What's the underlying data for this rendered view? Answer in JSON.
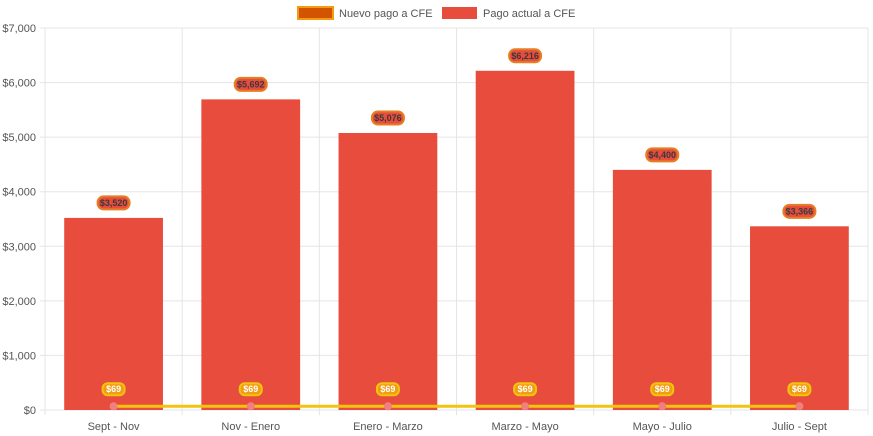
{
  "chart_data": {
    "type": "bar",
    "categories": [
      "Sept - Nov",
      "Nov - Enero",
      "Enero - Marzo",
      "Marzo - Mayo",
      "Mayo - Julio",
      "Julio - Sept"
    ],
    "series": [
      {
        "name": "Nuevo pago a CFE",
        "type": "line",
        "values": [
          69,
          69,
          69,
          69,
          69,
          69
        ],
        "labels": [
          "$69",
          "$69",
          "$69",
          "$69",
          "$69",
          "$69"
        ],
        "color": "#f1c40f",
        "legend_fill": "#d35400",
        "legend_border": "#f39c12"
      },
      {
        "name": "Pago actual a CFE",
        "type": "bar",
        "values": [
          3520,
          5692,
          5076,
          6216,
          4400,
          3366
        ],
        "labels": [
          "$3,520",
          "$5,692",
          "$5,076",
          "$6,216",
          "$4,400",
          "$3,366"
        ],
        "color": "#e74c3c",
        "label_fill": "#e74c3c",
        "label_border": "#e67e22"
      }
    ],
    "y_ticks": [
      "$0",
      "$1,000",
      "$2,000",
      "$3,000",
      "$4,000",
      "$5,000",
      "$6,000",
      "$7,000"
    ],
    "ylim": [
      0,
      7000
    ],
    "grid": true,
    "legend_position": "top-center"
  }
}
